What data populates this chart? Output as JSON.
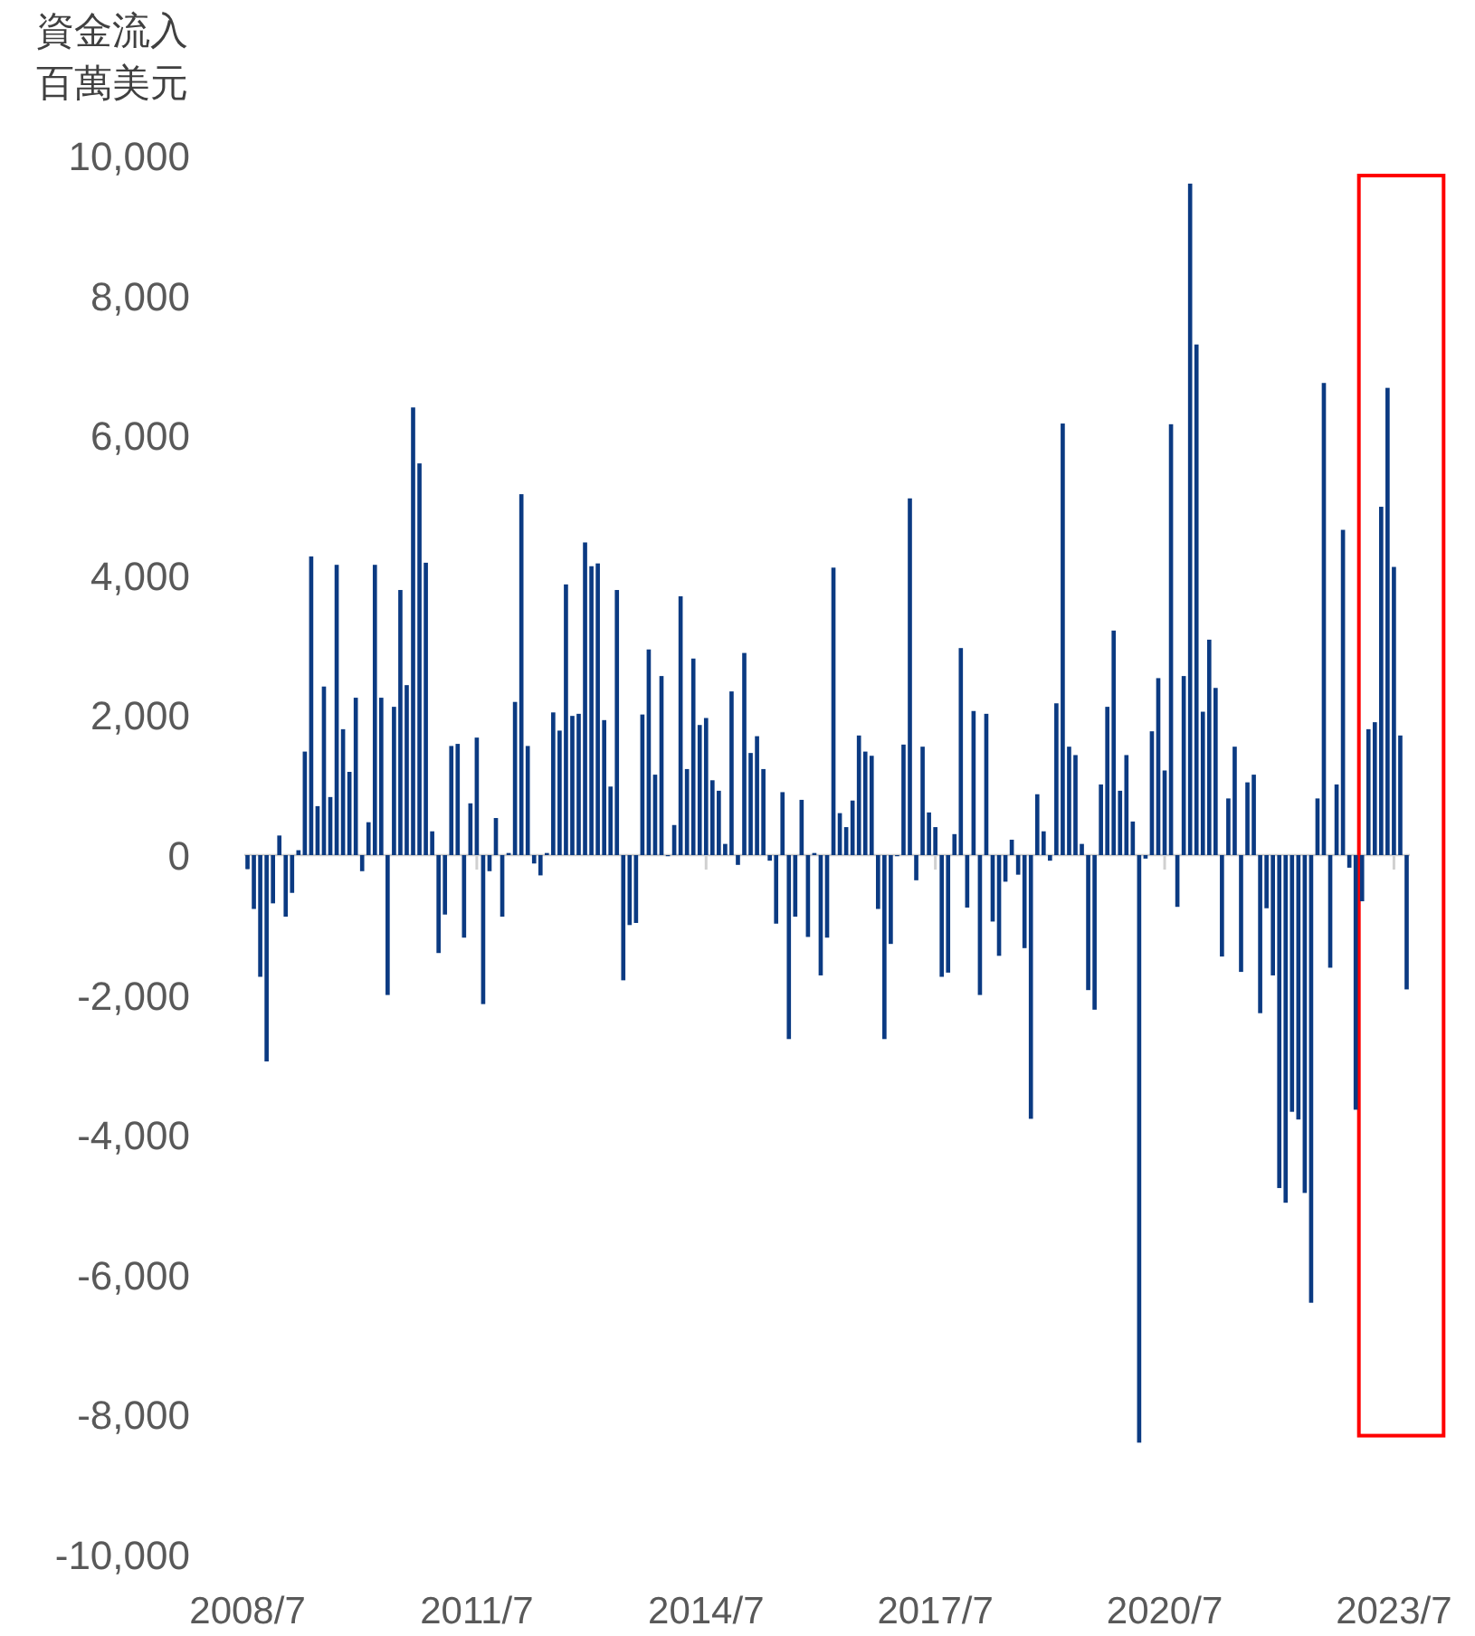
{
  "chart_data": {
    "type": "bar",
    "ylabel": "資金流入百萬美元",
    "color": "#0b3a82",
    "categories": [
      "2008/7",
      null,
      null,
      null,
      null,
      null,
      null,
      null,
      null,
      null,
      null,
      null,
      null,
      null,
      null,
      null,
      null,
      null,
      null,
      null,
      null,
      null,
      null,
      null,
      null,
      null,
      null,
      null,
      null,
      null,
      null,
      null,
      null,
      null,
      null,
      null,
      "2011/7",
      null,
      null,
      null,
      null,
      null,
      null,
      null,
      null,
      null,
      null,
      null,
      null,
      null,
      null,
      null,
      null,
      null,
      null,
      null,
      null,
      null,
      null,
      null,
      null,
      null,
      null,
      null,
      null,
      null,
      null,
      null,
      null,
      null,
      null,
      null,
      "2014/7",
      null,
      null,
      null,
      null,
      null,
      null,
      null,
      null,
      null,
      null,
      null,
      null,
      null,
      null,
      null,
      null,
      null,
      null,
      null,
      null,
      null,
      null,
      null,
      null,
      null,
      null,
      null,
      null,
      null,
      null,
      null,
      null,
      null,
      null,
      null,
      "2017/7",
      null,
      null,
      null,
      null,
      null,
      null,
      null,
      null,
      null,
      null,
      null,
      null,
      null,
      null,
      null,
      null,
      null,
      null,
      null,
      null,
      null,
      null,
      null,
      null,
      null,
      null,
      null,
      null,
      null,
      null,
      null,
      null,
      null,
      null,
      null,
      "2020/7",
      null,
      null,
      null,
      null,
      null,
      null,
      null,
      null,
      null,
      null,
      null,
      null,
      null,
      null,
      null,
      null,
      null,
      null,
      null,
      null,
      null,
      null,
      null,
      null,
      null,
      null,
      null,
      null,
      null,
      null,
      null,
      null,
      null,
      null,
      null,
      "2023/7",
      null,
      null
    ],
    "values": [
      -200,
      -770,
      -1740,
      -2950,
      -690,
      280,
      -880,
      -540,
      70,
      1480,
      4270,
      700,
      2410,
      830,
      4150,
      1800,
      1190,
      2250,
      -230,
      470,
      4150,
      2250,
      -2000,
      2120,
      3790,
      2430,
      6400,
      5600,
      4180,
      340,
      -1400,
      -850,
      1560,
      1590,
      -1180,
      740,
      1680,
      -2130,
      -230,
      530,
      -880,
      30,
      2190,
      5160,
      1560,
      -120,
      -290,
      30,
      2040,
      1780,
      3870,
      1990,
      2020,
      4470,
      4130,
      4170,
      1930,
      980,
      3790,
      -1790,
      -1000,
      -970,
      2010,
      2940,
      1150,
      2560,
      0,
      430,
      3700,
      1230,
      2810,
      1860,
      1960,
      1070,
      920,
      160,
      2340,
      -140,
      2890,
      1460,
      1700,
      1230,
      -80,
      -980,
      900,
      -2630,
      -880,
      790,
      -1170,
      30,
      -1720,
      -1180,
      4110,
      600,
      400,
      780,
      1710,
      1480,
      1420,
      -770,
      -2630,
      -1270,
      0,
      1580,
      5100,
      -360,
      1550,
      610,
      400,
      -1740,
      -1680,
      300,
      2960,
      -750,
      2060,
      -2000,
      2020,
      -950,
      -1440,
      -380,
      220,
      -280,
      -1330,
      -3770,
      870,
      340,
      -80,
      2170,
      6170,
      1550,
      1430,
      160,
      -1930,
      -2210,
      1010,
      2120,
      3210,
      920,
      1430,
      480,
      -8400,
      -50,
      1770,
      2530,
      1210,
      6160,
      -740,
      2560,
      9600,
      7300,
      2050,
      3080,
      2390,
      -1450,
      810,
      1550,
      -1670,
      1040,
      1150,
      -2260,
      -760,
      -1720,
      -4760,
      -4970,
      -3670,
      -3780,
      -4830,
      -6400,
      810,
      6750,
      -1610,
      1010,
      4650,
      -180,
      -3640,
      -660,
      1800,
      1900,
      4980,
      6680,
      4120,
      1710,
      -1920
    ],
    "ylim": [
      -10000,
      10000
    ],
    "yticks": [
      {
        "value": -10000,
        "label": "-10,000"
      },
      {
        "value": -8000,
        "label": "-8,000"
      },
      {
        "value": -6000,
        "label": "-6,000"
      },
      {
        "value": -4000,
        "label": "-4,000"
      },
      {
        "value": -2000,
        "label": "-2,000"
      },
      0,
      {
        "value": 2000,
        "label": "2,000"
      },
      {
        "value": 4000,
        "label": "4,000"
      },
      {
        "value": 6000,
        "label": "6,000"
      },
      {
        "value": 8000,
        "label": "8,000"
      },
      {
        "value": 10000,
        "label": "10,000"
      }
    ]
  }
}
